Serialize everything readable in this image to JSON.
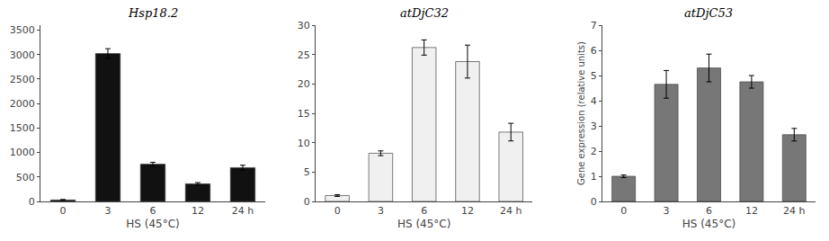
{
  "chart_data": [
    {
      "type": "bar",
      "title": "Hsp18.2",
      "categories": [
        "0",
        "3",
        "6",
        "12",
        "24 h"
      ],
      "values": [
        30,
        3020,
        760,
        360,
        690
      ],
      "errors": [
        10,
        100,
        40,
        25,
        50
      ],
      "color": "#111111",
      "xlabel": "HS (45°C)",
      "ylim": [
        0,
        3600
      ],
      "yticks": [
        0,
        500,
        1000,
        1500,
        2000,
        2500,
        3000,
        3500
      ],
      "grid": false
    },
    {
      "type": "bar",
      "title": "atDjC32",
      "categories": [
        "0",
        "3",
        "6",
        "12",
        "24 h"
      ],
      "values": [
        1.0,
        8.2,
        26.2,
        23.8,
        11.8
      ],
      "errors": [
        0.15,
        0.4,
        1.3,
        2.8,
        1.5
      ],
      "color": "#f0f0f0",
      "xlabel": "HS (45°C)",
      "ylim": [
        0,
        30
      ],
      "yticks": [
        0,
        5,
        10,
        15,
        20,
        25,
        30
      ],
      "grid": false
    },
    {
      "type": "bar",
      "title": "atDjC53",
      "categories": [
        "0",
        "3",
        "6",
        "12",
        "24 h"
      ],
      "values": [
        1.0,
        4.65,
        5.3,
        4.75,
        2.65
      ],
      "errors": [
        0.05,
        0.55,
        0.55,
        0.25,
        0.25
      ],
      "color": "#777777",
      "xlabel": "HS (45°C)",
      "ylabel": "Gene expression (relative units)",
      "ylim": [
        0,
        7
      ],
      "yticks": [
        0,
        1,
        2,
        3,
        4,
        5,
        6,
        7
      ],
      "grid": false
    }
  ]
}
